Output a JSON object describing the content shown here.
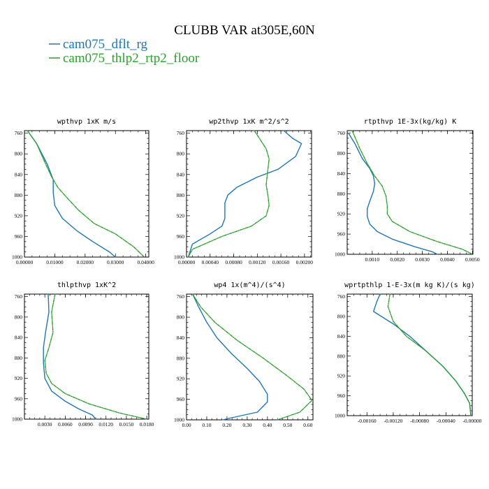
{
  "figure": {
    "title": "CLUBB VAR at305E,60N",
    "legend": [
      {
        "name": "cam075_dflt_rg",
        "color": "#1f77b4"
      },
      {
        "name": "cam075_thlp2_rtp2_floor",
        "color": "#2ca02c"
      }
    ]
  },
  "chart_data": [
    {
      "type": "line",
      "title": "wpthvp  1xK m/s",
      "xlim": [
        0,
        0.041
      ],
      "ylim": [
        1000,
        755
      ],
      "xticks": [
        0,
        0.01,
        0.02,
        0.03,
        0.04
      ],
      "xtick_labels": [
        "0.00000",
        "0.01000",
        "0.02000",
        "0.03000",
        "0.04000"
      ],
      "yticks": [
        760,
        800,
        840,
        880,
        920,
        960,
        1000
      ],
      "series": [
        {
          "name": "cam075_dflt_rg",
          "color": "#1f77b4",
          "points": [
            [
              0.001,
              755
            ],
            [
              0.004,
              780
            ],
            [
              0.0075,
              820
            ],
            [
              0.0095,
              850
            ],
            [
              0.0095,
              875
            ],
            [
              0.01,
              900
            ],
            [
              0.0125,
              925
            ],
            [
              0.0175,
              950
            ],
            [
              0.0225,
              970
            ],
            [
              0.028,
              990
            ],
            [
              0.03,
              1000
            ]
          ]
        },
        {
          "name": "cam075_thlp2_rtp2_floor",
          "color": "#2ca02c",
          "points": [
            [
              0.001,
              755
            ],
            [
              0.004,
              780
            ],
            [
              0.007,
              820
            ],
            [
              0.009,
              845
            ],
            [
              0.011,
              865
            ],
            [
              0.014,
              885
            ],
            [
              0.018,
              910
            ],
            [
              0.023,
              935
            ],
            [
              0.03,
              955
            ],
            [
              0.036,
              980
            ],
            [
              0.0395,
              1000
            ]
          ]
        }
      ]
    },
    {
      "type": "line",
      "title": "wp2thvp  1xK m^2/s^2",
      "xlim": [
        0,
        0.00212
      ],
      "ylim": [
        1000,
        755
      ],
      "xticks": [
        0,
        0.0004,
        0.0008,
        0.0012,
        0.0016,
        0.002
      ],
      "xtick_labels": [
        "0.00000",
        "0.00040",
        "0.00080",
        "0.00120",
        "0.00160",
        "0.00200"
      ],
      "yticks": [
        760,
        800,
        840,
        880,
        920,
        960,
        1000
      ],
      "series": [
        {
          "name": "cam075_dflt_rg",
          "color": "#1f77b4",
          "points": [
            [
              0.00165,
              755
            ],
            [
              0.0018,
              770
            ],
            [
              0.00195,
              780
            ],
            [
              0.00185,
              805
            ],
            [
              0.00155,
              830
            ],
            [
              0.0012,
              845
            ],
            [
              0.00085,
              865
            ],
            [
              0.0007,
              880
            ],
            [
              0.00065,
              895
            ],
            [
              0.00065,
              910
            ],
            [
              0.00065,
              925
            ],
            [
              0.0006,
              940
            ],
            [
              0.0004,
              955
            ],
            [
              0.0001,
              975
            ],
            [
              3e-05,
              1000
            ]
          ]
        },
        {
          "name": "cam075_thlp2_rtp2_floor",
          "color": "#2ca02c",
          "points": [
            [
              0.00115,
              755
            ],
            [
              0.00135,
              790
            ],
            [
              0.0014,
              810
            ],
            [
              0.00138,
              830
            ],
            [
              0.00135,
              860
            ],
            [
              0.00138,
              880
            ],
            [
              0.0014,
              900
            ],
            [
              0.00135,
              920
            ],
            [
              0.0011,
              940
            ],
            [
              0.0006,
              960
            ],
            [
              0.0001,
              985
            ],
            [
              3e-05,
              1000
            ]
          ]
        }
      ]
    },
    {
      "type": "line",
      "title": "rtpthvp  1E-3x(kg/kg) K",
      "xlim": [
        0,
        0.00502
      ],
      "ylim": [
        1000,
        755
      ],
      "xticks": [
        0.001,
        0.002,
        0.003,
        0.004,
        0.005
      ],
      "xtick_labels": [
        "0.0010",
        "0.0020",
        "0.0030",
        "0.0040",
        "0.0050"
      ],
      "yticks": [
        760,
        800,
        840,
        880,
        920,
        960,
        1000
      ],
      "series": [
        {
          "name": "cam075_dflt_rg",
          "color": "#1f77b4",
          "points": [
            [
              5e-05,
              760
            ],
            [
              0.0003,
              780
            ],
            [
              0.0006,
              810
            ],
            [
              0.0009,
              830
            ],
            [
              0.00105,
              845
            ],
            [
              0.0011,
              860
            ],
            [
              0.00105,
              875
            ],
            [
              0.0009,
              895
            ],
            [
              0.0008,
              910
            ],
            [
              0.0008,
              925
            ],
            [
              0.0009,
              940
            ],
            [
              0.0012,
              955
            ],
            [
              0.0018,
              970
            ],
            [
              0.0027,
              985
            ],
            [
              0.0034,
              995
            ],
            [
              0.0036,
              1000
            ]
          ]
        },
        {
          "name": "cam075_thlp2_rtp2_floor",
          "color": "#2ca02c",
          "points": [
            [
              0.0002,
              755
            ],
            [
              0.0005,
              790
            ],
            [
              0.0008,
              820
            ],
            [
              0.0011,
              845
            ],
            [
              0.0014,
              865
            ],
            [
              0.00155,
              885
            ],
            [
              0.0016,
              905
            ],
            [
              0.0016,
              920
            ],
            [
              0.0018,
              935
            ],
            [
              0.0025,
              955
            ],
            [
              0.0036,
              975
            ],
            [
              0.0046,
              990
            ],
            [
              0.005,
              1000
            ]
          ]
        }
      ]
    },
    {
      "type": "line",
      "title": "thlpthvp  1xK^2",
      "xlim": [
        0,
        0.0183
      ],
      "ylim": [
        1000,
        755
      ],
      "xticks": [
        0.003,
        0.006,
        0.009,
        0.012,
        0.015,
        0.018
      ],
      "xtick_labels": [
        "0.0030",
        "0.0060",
        "0.0090",
        "0.0120",
        "0.0150",
        "0.0180"
      ],
      "yticks": [
        760,
        800,
        840,
        880,
        920,
        960,
        1000
      ],
      "series": [
        {
          "name": "cam075_dflt_rg",
          "color": "#1f77b4",
          "points": [
            [
              0.0035,
              755
            ],
            [
              0.0036,
              790
            ],
            [
              0.0031,
              830
            ],
            [
              0.0028,
              860
            ],
            [
              0.0028,
              890
            ],
            [
              0.003,
              920
            ],
            [
              0.004,
              945
            ],
            [
              0.006,
              965
            ],
            [
              0.008,
              980
            ],
            [
              0.01,
              992
            ],
            [
              0.0105,
              1000
            ]
          ]
        },
        {
          "name": "cam075_thlp2_rtp2_floor",
          "color": "#2ca02c",
          "points": [
            [
              0.0045,
              755
            ],
            [
              0.004,
              790
            ],
            [
              0.0042,
              830
            ],
            [
              0.0036,
              860
            ],
            [
              0.003,
              885
            ],
            [
              0.0032,
              910
            ],
            [
              0.004,
              930
            ],
            [
              0.006,
              950
            ],
            [
              0.0095,
              970
            ],
            [
              0.014,
              988
            ],
            [
              0.018,
              1000
            ]
          ]
        }
      ]
    },
    {
      "type": "line",
      "title": "wp4  1x(m^4)/(s^4)",
      "xlim": [
        0,
        0.625
      ],
      "ylim": [
        1000,
        755
      ],
      "xticks": [
        0,
        0.1,
        0.2,
        0.3,
        0.4,
        0.5,
        0.6
      ],
      "xtick_labels": [
        "0.00",
        "0.10",
        "0.20",
        "0.30",
        "0.40",
        "0.50",
        "0.60"
      ],
      "yticks": [
        760,
        800,
        840,
        880,
        920,
        960,
        1000
      ],
      "series": [
        {
          "name": "cam075_dflt_rg",
          "color": "#1f77b4",
          "points": [
            [
              0.03,
              755
            ],
            [
              0.06,
              780
            ],
            [
              0.1,
              810
            ],
            [
              0.15,
              840
            ],
            [
              0.22,
              870
            ],
            [
              0.3,
              900
            ],
            [
              0.36,
              925
            ],
            [
              0.4,
              950
            ],
            [
              0.4,
              965
            ],
            [
              0.35,
              985
            ],
            [
              0.2,
              998
            ],
            [
              0.18,
              1000
            ]
          ]
        },
        {
          "name": "cam075_thlp2_rtp2_floor",
          "color": "#2ca02c",
          "points": [
            [
              0.03,
              755
            ],
            [
              0.07,
              780
            ],
            [
              0.14,
              810
            ],
            [
              0.25,
              845
            ],
            [
              0.38,
              880
            ],
            [
              0.5,
              915
            ],
            [
              0.58,
              940
            ],
            [
              0.62,
              962
            ],
            [
              0.56,
              985
            ],
            [
              0.45,
              1000
            ]
          ]
        }
      ]
    },
    {
      "type": "line",
      "title": "wprtpthlp  1-E-3x(m kg K)/(s kg)",
      "xlim": [
        -0.0019,
        0.0
      ],
      "ylim": [
        1000,
        755
      ],
      "xticks": [
        -0.0016,
        -0.0012,
        -0.0008,
        -0.0004,
        0.0
      ],
      "xtick_labels": [
        "-0.00160",
        "-0.00120",
        "-0.00080",
        "-0.00040",
        "-0.00000"
      ],
      "yticks": [
        760,
        800,
        840,
        880,
        920,
        960,
        1000
      ],
      "series": [
        {
          "name": "cam075_dflt_rg",
          "color": "#1f77b4",
          "points": [
            [
              -0.0014,
              755
            ],
            [
              -0.00145,
              770
            ],
            [
              -0.0015,
              790
            ],
            [
              -0.0012,
              815
            ],
            [
              -0.00095,
              840
            ],
            [
              -0.0007,
              870
            ],
            [
              -0.00045,
              900
            ],
            [
              -0.00025,
              930
            ],
            [
              -0.00012,
              955
            ],
            [
              -4e-05,
              975
            ],
            [
              -2e-05,
              1000
            ]
          ]
        },
        {
          "name": "cam075_thlp2_rtp2_floor",
          "color": "#2ca02c",
          "points": [
            [
              -0.00125,
              755
            ],
            [
              -0.00128,
              780
            ],
            [
              -0.0012,
              810
            ],
            [
              -0.001,
              840
            ],
            [
              -0.0007,
              870
            ],
            [
              -0.00045,
              900
            ],
            [
              -0.00025,
              930
            ],
            [
              -0.00012,
              955
            ],
            [
              -4e-05,
              975
            ],
            [
              -2e-05,
              1000
            ]
          ]
        }
      ]
    }
  ]
}
